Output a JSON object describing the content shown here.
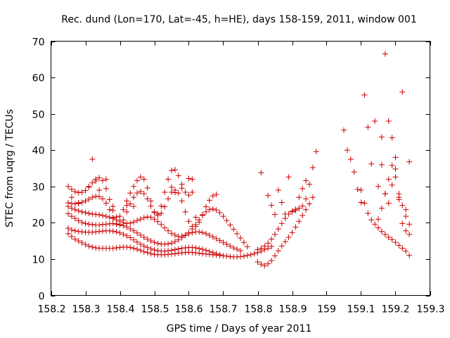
{
  "chart_data": {
    "type": "scatter",
    "title": "Rec. dund (Lon=170, Lat=-45, h=HE), days 158-159, 2011, window 001",
    "xlabel": "GPS time / Days of year 2011",
    "ylabel": "STEC from uqrg / TECUs",
    "xlim": [
      158.2,
      159.3
    ],
    "ylim": [
      0,
      70
    ],
    "xticks": [
      "158.2",
      "158.3",
      "158.4",
      "158.5",
      "158.6",
      "158.7",
      "158.8",
      "158.9",
      "159",
      "159.1",
      "159.2",
      "159.3"
    ],
    "yticks": [
      "0",
      "10",
      "20",
      "30",
      "40",
      "50",
      "60",
      "70"
    ],
    "grid": false,
    "marker": "+",
    "color": "#cc0000",
    "series": [
      {
        "x": [
          158.25,
          158.26,
          158.27,
          158.28,
          158.29,
          158.3,
          158.31,
          158.32,
          158.33,
          158.34,
          158.35,
          158.36,
          158.37,
          158.38,
          158.39,
          158.4,
          158.41,
          158.42,
          158.43,
          158.44,
          158.45,
          158.46,
          158.47,
          158.48,
          158.49,
          158.5,
          158.51,
          158.52,
          158.53,
          158.54,
          158.55,
          158.56,
          158.57,
          158.58,
          158.59,
          158.6,
          158.61,
          158.62,
          158.63,
          158.64,
          158.65,
          158.66,
          158.67,
          158.68,
          158.69,
          158.7,
          158.71,
          158.72,
          158.73,
          158.74,
          158.75,
          158.76,
          158.77,
          158.78,
          158.79,
          158.8,
          158.81,
          158.82,
          158.83,
          158.84
        ],
        "y": [
          17.0,
          16.2,
          15.5,
          15.0,
          14.5,
          14.0,
          13.6,
          13.3,
          13.1,
          13.0,
          13.0,
          13.0,
          13.0,
          13.0,
          13.1,
          13.2,
          13.3,
          13.3,
          13.2,
          13.0,
          12.7,
          12.4,
          12.0,
          11.8,
          11.5,
          11.3,
          11.2,
          11.2,
          11.2,
          11.3,
          11.4,
          11.5,
          11.6,
          11.7,
          11.8,
          11.9,
          11.8,
          11.7,
          11.6,
          11.5,
          11.4,
          11.3,
          11.2,
          11.1,
          11.0,
          10.9,
          10.8,
          10.7,
          10.6,
          10.6,
          10.7,
          10.8,
          11.0,
          11.2,
          11.5,
          11.8,
          12.2,
          12.6,
          13.0,
          13.5
        ]
      },
      {
        "x": [
          158.25,
          158.26,
          158.27,
          158.28,
          158.29,
          158.3,
          158.31,
          158.32,
          158.33,
          158.34,
          158.35,
          158.36,
          158.37,
          158.38,
          158.39,
          158.4,
          158.41,
          158.42,
          158.43,
          158.44,
          158.45,
          158.46,
          158.47,
          158.48,
          158.49,
          158.5,
          158.51,
          158.52,
          158.53,
          158.54,
          158.55,
          158.56,
          158.57,
          158.58,
          158.59,
          158.6,
          158.61,
          158.62,
          158.63,
          158.64,
          158.65,
          158.66,
          158.67,
          158.68,
          158.69
        ],
        "y": [
          18.5,
          18.0,
          17.8,
          17.6,
          17.5,
          17.4,
          17.4,
          17.4,
          17.5,
          17.6,
          17.7,
          17.8,
          17.8,
          17.7,
          17.5,
          17.2,
          16.8,
          16.4,
          15.9,
          15.3,
          14.7,
          14.1,
          13.6,
          13.2,
          12.8,
          12.5,
          12.3,
          12.2,
          12.2,
          12.3,
          12.4,
          12.6,
          12.8,
          13.0,
          13.1,
          13.2,
          13.2,
          13.1,
          12.9,
          12.7,
          12.4,
          12.1,
          11.8,
          11.5,
          11.2
        ]
      },
      {
        "x": [
          158.25,
          158.26,
          158.27,
          158.28,
          158.29,
          158.3,
          158.31,
          158.32,
          158.33,
          158.34,
          158.35,
          158.36,
          158.37,
          158.38,
          158.39,
          158.4,
          158.41,
          158.42,
          158.43,
          158.44,
          158.45,
          158.46,
          158.47,
          158.48,
          158.49,
          158.5,
          158.51,
          158.52,
          158.53,
          158.54,
          158.55,
          158.56,
          158.57,
          158.58,
          158.59,
          158.6,
          158.61,
          158.62,
          158.63,
          158.64,
          158.65,
          158.66,
          158.67,
          158.68,
          158.69,
          158.7,
          158.71,
          158.72,
          158.73,
          158.74,
          158.75
        ],
        "y": [
          22.5,
          21.8,
          21.2,
          20.6,
          20.1,
          19.8,
          19.6,
          19.5,
          19.4,
          19.4,
          19.5,
          19.6,
          19.7,
          19.8,
          19.7,
          19.5,
          19.2,
          18.8,
          18.3,
          17.8,
          17.2,
          16.6,
          16.0,
          15.5,
          15.0,
          14.6,
          14.3,
          14.1,
          14.1,
          14.2,
          14.4,
          14.8,
          15.3,
          15.9,
          16.5,
          17.0,
          17.3,
          17.5,
          17.5,
          17.3,
          17.0,
          16.6,
          16.1,
          15.6,
          15.1,
          14.6,
          14.1,
          13.6,
          13.1,
          12.7,
          12.3
        ]
      },
      {
        "x": [
          158.25,
          158.26,
          158.27,
          158.28,
          158.29,
          158.3,
          158.31,
          158.32,
          158.33,
          158.34,
          158.35,
          158.36,
          158.37,
          158.38,
          158.39,
          158.4,
          158.41,
          158.42,
          158.43,
          158.44,
          158.45,
          158.46,
          158.47,
          158.48,
          158.49,
          158.5,
          158.51,
          158.52,
          158.53,
          158.54,
          158.55,
          158.56,
          158.57,
          158.58,
          158.59,
          158.6,
          158.61,
          158.62,
          158.63,
          158.64,
          158.65,
          158.66,
          158.67,
          158.68,
          158.69,
          158.7,
          158.71,
          158.72,
          158.73,
          158.74,
          158.75,
          158.76,
          158.77
        ],
        "y": [
          24.5,
          24.0,
          23.6,
          23.3,
          23.0,
          22.8,
          22.6,
          22.4,
          22.3,
          22.2,
          22.0,
          21.8,
          21.5,
          21.2,
          20.8,
          20.4,
          20.0,
          19.8,
          19.9,
          20.2,
          20.6,
          21.0,
          21.4,
          21.6,
          21.5,
          21.0,
          20.3,
          19.5,
          18.6,
          17.8,
          17.1,
          16.6,
          16.3,
          16.3,
          16.6,
          17.3,
          18.3,
          19.5,
          20.8,
          22.0,
          23.0,
          23.6,
          23.8,
          23.5,
          22.8,
          21.8,
          20.6,
          19.4,
          18.2,
          17.0,
          15.8,
          14.6,
          13.4
        ]
      },
      {
        "x": [
          158.25,
          158.26,
          158.27,
          158.28,
          158.29,
          158.3,
          158.31,
          158.32,
          158.33,
          158.34,
          158.35,
          158.36,
          158.37,
          158.38,
          158.39,
          158.4,
          158.41,
          158.42,
          158.43,
          158.44,
          158.45,
          158.46,
          158.47,
          158.48,
          158.49,
          158.5,
          158.51,
          158.52,
          158.53,
          158.54,
          158.55,
          158.56,
          158.57,
          158.58,
          158.59,
          158.6,
          158.61,
          158.62,
          158.63,
          158.64,
          158.65,
          158.66,
          158.67,
          158.68
        ],
        "y": [
          25.5,
          25.3,
          25.2,
          25.3,
          25.6,
          26.0,
          26.5,
          27.0,
          27.3,
          27.2,
          26.6,
          25.4,
          23.6,
          21.4,
          19.6,
          19.4,
          20.8,
          23.0,
          25.2,
          27.0,
          28.2,
          28.6,
          28.0,
          26.6,
          24.6,
          22.8,
          22.0,
          22.6,
          24.4,
          26.6,
          28.4,
          29.0,
          28.2,
          26.0,
          23.0,
          20.4,
          19.0,
          19.0,
          20.2,
          22.2,
          24.4,
          26.2,
          27.4,
          27.8
        ]
      },
      {
        "x": [
          158.25,
          158.26,
          158.27,
          158.28,
          158.29,
          158.3,
          158.31,
          158.32,
          158.33,
          158.34,
          158.35,
          158.36,
          158.37,
          158.38,
          158.39,
          158.4,
          158.41,
          158.42,
          158.43,
          158.44,
          158.45,
          158.46,
          158.47,
          158.48,
          158.49,
          158.5,
          158.51,
          158.52,
          158.53,
          158.54,
          158.55,
          158.56,
          158.57,
          158.58,
          158.59,
          158.6,
          158.61
        ],
        "y": [
          30.0,
          29.2,
          28.6,
          28.3,
          28.4,
          28.9,
          29.8,
          31.0,
          32.0,
          32.4,
          31.6,
          29.4,
          26.4,
          23.4,
          21.6,
          21.8,
          23.6,
          26.0,
          28.2,
          30.0,
          31.6,
          32.6,
          32.0,
          29.6,
          26.0,
          23.0,
          22.4,
          24.6,
          28.4,
          32.0,
          34.4,
          34.6,
          33.0,
          30.6,
          28.4,
          27.6,
          28.4
        ]
      },
      {
        "x": [
          158.26,
          158.28,
          158.3,
          158.31,
          158.32,
          158.33,
          158.34,
          158.36,
          158.38,
          158.42,
          158.44,
          158.55,
          158.56,
          158.58,
          158.6,
          158.61,
          158.62
        ],
        "y": [
          27.0,
          25.5,
          26.0,
          30.0,
          37.5,
          31.5,
          29.0,
          32.0,
          24.5,
          24.8,
          24.5,
          29.8,
          28.3,
          29.5,
          32.2,
          32.0,
          21.5
        ]
      },
      {
        "x": [
          158.8,
          158.81,
          158.82,
          158.83,
          158.84,
          158.85,
          158.86,
          158.87,
          158.88,
          158.89,
          158.9,
          158.91,
          158.92,
          158.93,
          158.94,
          158.95,
          158.96
        ],
        "y": [
          9.2,
          8.6,
          8.2,
          8.7,
          9.6,
          10.9,
          12.3,
          13.6,
          14.8,
          16.0,
          17.3,
          18.8,
          20.4,
          22.0,
          23.6,
          25.2,
          27.0
        ]
      },
      {
        "x": [
          158.8,
          158.81,
          158.82,
          158.83,
          158.84,
          158.85,
          158.86,
          158.87,
          158.88,
          158.89,
          158.9,
          158.91,
          158.92,
          158.93,
          158.94,
          158.95,
          158.96,
          158.97
        ],
        "y": [
          12.6,
          13.0,
          13.6,
          14.4,
          15.5,
          16.8,
          18.3,
          19.8,
          21.2,
          22.4,
          23.2,
          23.7,
          24.0,
          24.6,
          26.6,
          30.6,
          35.2,
          39.6
        ]
      },
      {
        "x": [
          158.81,
          158.83,
          158.84,
          158.85,
          158.86,
          158.87,
          158.88,
          158.89,
          158.9,
          158.91,
          158.92,
          158.93,
          158.94
        ],
        "y": [
          33.8,
          27.5,
          24.8,
          22.3,
          29.0,
          25.6,
          22.4,
          32.6,
          23.0,
          23.4,
          27.0,
          29.4,
          31.6
        ]
      },
      {
        "x": [
          159.05,
          159.06,
          159.07,
          159.08,
          159.09,
          159.1,
          159.11,
          159.12,
          159.13,
          159.14,
          159.15,
          159.16,
          159.17,
          159.18,
          159.19,
          159.2,
          159.21,
          159.22,
          159.23,
          159.24
        ],
        "y": [
          45.5,
          40.0,
          37.5,
          34.0,
          29.2,
          25.6,
          55.2,
          46.3,
          36.2,
          48.0,
          30.0,
          43.6,
          66.5,
          48.0,
          43.4,
          34.8,
          27.0,
          56.0,
          23.6,
          36.8
        ]
      },
      {
        "x": [
          159.1,
          159.11,
          159.12,
          159.13,
          159.14,
          159.15,
          159.16,
          159.17,
          159.18,
          159.19,
          159.2,
          159.21,
          159.22,
          159.23,
          159.24
        ],
        "y": [
          29.0,
          25.4,
          22.6,
          20.8,
          19.6,
          18.6,
          17.6,
          16.8,
          16.0,
          15.4,
          14.6,
          13.8,
          13.0,
          12.2,
          11.0
        ]
      },
      {
        "x": [
          159.15,
          159.16,
          159.17,
          159.18,
          159.19,
          159.2,
          159.21,
          159.22,
          159.23,
          159.24
        ],
        "y": [
          21.0,
          24.0,
          28.0,
          32.0,
          35.8,
          32.6,
          28.0,
          24.8,
          21.8,
          19.6
        ]
      },
      {
        "x": [
          159.16,
          159.17,
          159.18,
          159.19,
          159.2,
          159.21,
          159.22,
          159.23,
          159.24
        ],
        "y": [
          36.0,
          28.0,
          25.4,
          30.4,
          38.0,
          26.4,
          19.8,
          17.8,
          16.8
        ]
      }
    ]
  }
}
